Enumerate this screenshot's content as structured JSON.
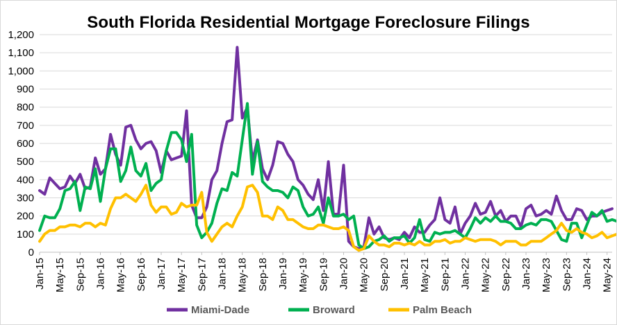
{
  "chart_data": {
    "type": "line",
    "title": "South Florida Residential Mortgage Foreclosure Filings",
    "xlabel": "",
    "ylabel": "",
    "ylim": [
      0,
      1200
    ],
    "yticks": [
      "0",
      "100",
      "200",
      "300",
      "400",
      "500",
      "600",
      "700",
      "800",
      "900",
      "1,000",
      "1,100",
      "1,200"
    ],
    "xticks": [
      "Jan-15",
      "May-15",
      "Sep-15",
      "Jan-16",
      "May-16",
      "Sep-16",
      "Jan-17",
      "May-17",
      "Sep-17",
      "Jan-18",
      "May-18",
      "Sep-18",
      "Jan-19",
      "May-19",
      "Sep-19",
      "Jan-20",
      "May-20",
      "Sep-20",
      "Jan-21",
      "May-21",
      "Sep-21",
      "Jan-22",
      "May-22",
      "Sep-22",
      "Jan-23",
      "May-23",
      "Sep-23",
      "Jan-24",
      "May-24"
    ],
    "grid": true,
    "legend_position": "bottom",
    "series": [
      {
        "name": "Miami-Dade",
        "color": "#7030A0",
        "values": [
          340,
          320,
          410,
          380,
          350,
          360,
          420,
          380,
          430,
          350,
          360,
          520,
          430,
          460,
          650,
          540,
          480,
          690,
          700,
          620,
          570,
          600,
          610,
          560,
          440,
          560,
          510,
          520,
          530,
          780,
          260,
          190,
          190,
          250,
          400,
          450,
          600,
          720,
          730,
          1130,
          740,
          800,
          500,
          620,
          460,
          400,
          480,
          610,
          600,
          540,
          500,
          400,
          370,
          320,
          290,
          400,
          230,
          500,
          210,
          210,
          480,
          60,
          30,
          20,
          30,
          190,
          100,
          140,
          80,
          70,
          80,
          70,
          110,
          80,
          140,
          110,
          110,
          150,
          180,
          300,
          180,
          160,
          250,
          100,
          160,
          200,
          270,
          210,
          220,
          280,
          200,
          230,
          170,
          200,
          200,
          140,
          240,
          260,
          200,
          210,
          230,
          210,
          310,
          230,
          180,
          180,
          240,
          230,
          180,
          200,
          200,
          220,
          230,
          240
        ]
      },
      {
        "name": "Broward",
        "color": "#00B050",
        "values": [
          120,
          200,
          190,
          190,
          240,
          340,
          350,
          390,
          230,
          360,
          350,
          460,
          280,
          460,
          570,
          570,
          390,
          450,
          580,
          450,
          420,
          490,
          340,
          380,
          400,
          560,
          660,
          660,
          620,
          500,
          650,
          150,
          80,
          110,
          160,
          270,
          350,
          340,
          440,
          420,
          620,
          820,
          430,
          610,
          390,
          360,
          340,
          340,
          330,
          300,
          360,
          340,
          250,
          200,
          210,
          250,
          160,
          300,
          200,
          200,
          210,
          180,
          200,
          40,
          20,
          30,
          60,
          70,
          90,
          60,
          80,
          80,
          90,
          50,
          80,
          180,
          70,
          60,
          110,
          100,
          110,
          110,
          120,
          100,
          80,
          130,
          190,
          160,
          190,
          170,
          200,
          170,
          170,
          160,
          130,
          130,
          150,
          160,
          150,
          180,
          180,
          170,
          120,
          70,
          60,
          160,
          160,
          80,
          150,
          220,
          200,
          230,
          170,
          180,
          170,
          220,
          190,
          200,
          180
        ]
      },
      {
        "name": "Palm Beach",
        "color": "#FFC000",
        "values": [
          60,
          100,
          120,
          120,
          140,
          140,
          150,
          150,
          140,
          160,
          160,
          140,
          160,
          150,
          240,
          300,
          300,
          320,
          300,
          280,
          320,
          370,
          260,
          220,
          250,
          250,
          210,
          220,
          270,
          250,
          260,
          260,
          330,
          110,
          60,
          100,
          140,
          160,
          140,
          200,
          250,
          360,
          370,
          330,
          200,
          200,
          180,
          250,
          230,
          180,
          180,
          160,
          140,
          130,
          130,
          150,
          150,
          140,
          130,
          130,
          140,
          120,
          30,
          10,
          20,
          90,
          60,
          40,
          40,
          30,
          50,
          50,
          40,
          50,
          40,
          60,
          40,
          40,
          60,
          60,
          70,
          50,
          60,
          60,
          80,
          70,
          60,
          70,
          70,
          70,
          60,
          40,
          60,
          60,
          60,
          40,
          40,
          60,
          60,
          60,
          80,
          100,
          120,
          160,
          120,
          110,
          130,
          110,
          100,
          80,
          90,
          110,
          80,
          90,
          100,
          110,
          90,
          100,
          110
        ]
      }
    ]
  }
}
